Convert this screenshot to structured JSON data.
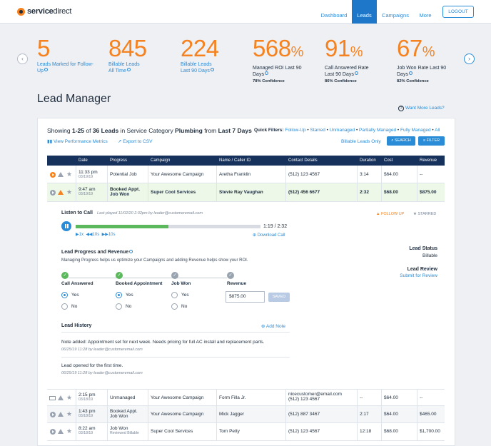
{
  "brand": {
    "name_bold": "service",
    "name_rest": "direct",
    "accent": "#f5821f",
    "primary": "#2a8bd6",
    "navy": "#16325c"
  },
  "nav": {
    "items": [
      "Dashboard",
      "Leads",
      "Campaigns",
      "More"
    ],
    "active": "Leads",
    "logout": "LOGOUT"
  },
  "stats": [
    {
      "value": "5",
      "pct": "",
      "label": "Leads Marked for Follow-Up",
      "confidence": ""
    },
    {
      "value": "845",
      "pct": "",
      "label": "Billable Leads All Time",
      "confidence": ""
    },
    {
      "value": "224",
      "pct": "",
      "label": "Billable Leads Last 90 Days",
      "confidence": ""
    },
    {
      "value": "568",
      "pct": "%",
      "label": "Managed ROI Last 90 Days",
      "confidence": "78% Confidence"
    },
    {
      "value": "91",
      "pct": "%",
      "label": "Call Answered Rate Last 90 Days",
      "confidence": "86% Confidence"
    },
    {
      "value": "67",
      "pct": "%",
      "label": "Job Won Rate Last 90 Days",
      "confidence": "82% Confidence"
    }
  ],
  "page": {
    "title": "Lead Manager",
    "want_more": "Want More Leads?"
  },
  "summary": {
    "p1": "Showing ",
    "range": "1-25",
    "p2": " of ",
    "total": "36 Leads",
    "p3": " in Service Category ",
    "category": "Plumbing",
    "p4": " from ",
    "period": "Last 7 Days"
  },
  "quick_filters": {
    "label": "Quick Filters: ",
    "items": [
      "Follow-Up",
      "Starred",
      "Unmanaged",
      "Partially Managed",
      "Fully Managed",
      "All"
    ]
  },
  "actions": {
    "performance": "View Performance Metrics",
    "export": "Export to CSV",
    "billable_only": "Billable Leads Only",
    "search": "SEARCH",
    "filter": "FILTER"
  },
  "table": {
    "columns": [
      "Date",
      "Progress",
      "Campaign",
      "Name / Caller ID",
      "Contact Details",
      "Duration",
      "Cost",
      "Revenue"
    ],
    "rows_top": [
      {
        "time": "11:33 pm",
        "date": "03/19/19",
        "progress": "Potential Job",
        "progress2": "",
        "campaign": "Your Awesome Campaign",
        "name": "Aretha Franklin",
        "contact": "(512) 123 4567",
        "contact2": "",
        "duration": "3:14",
        "cost": "$64.00",
        "revenue": "--"
      },
      {
        "time": "9:47 am",
        "date": "03/19/19",
        "progress": "Booked Appt.",
        "progress2": "Job Won",
        "campaign": "Super Cool Services",
        "name": "Stevie Ray Vaughan",
        "contact": "(512) 456 6677",
        "contact2": "",
        "duration": "2:32",
        "cost": "$68.00",
        "revenue": "$875.00"
      }
    ],
    "rows_bottom": [
      {
        "time": "2:15 pm",
        "date": "03/18/19",
        "progress": "Unmanaged",
        "progress2": "",
        "campaign": "Your Awesome Campaign",
        "name": "Form Filla Jr.",
        "contact": "nicecustomer@email.com",
        "contact2": "(512) 123 4567",
        "duration": "--",
        "cost": "$64.00",
        "revenue": "--"
      },
      {
        "time": "1:43 pm",
        "date": "03/18/19",
        "progress": "Booked Appt.",
        "progress2": "Job Won",
        "campaign": "Your Awesome Campaign",
        "name": "Mick Jagger",
        "contact": "(512) 887 3467",
        "contact2": "",
        "duration": "2:17",
        "cost": "$64.00",
        "revenue": "$465.00"
      },
      {
        "time": "8:22 am",
        "date": "03/18/19",
        "progress": "Job Won",
        "progress2": "Reviewed Billable",
        "campaign": "Super Cool Services",
        "name": "Tom Petty",
        "contact": "(512) 123 4567",
        "contact2": "",
        "duration": "12:18",
        "cost": "$68.00",
        "revenue": "$1,700.00"
      }
    ]
  },
  "detail": {
    "listen_label": "Listen to Call",
    "last_played": "Last played 11/02/20 2:32pm by leader@customeremail.com",
    "follow_up": "FOLLOW UP",
    "starred": "STARRED",
    "time": "1:19 / 2:32",
    "progress": 0.5,
    "speed": [
      "1x",
      "10s",
      "10s"
    ],
    "download": "Download Call",
    "progress_title": "Lead Progress and Revenue",
    "progress_desc": "Managing Progress helps us optimize your Campaigns and adding Revenue helps show your ROI.",
    "steps": [
      "Call Answered",
      "Booked Appointment",
      "Job Won",
      "Revenue"
    ],
    "yes": "Yes",
    "no": "No",
    "revenue_value": "$875.00",
    "saved": "SAVED",
    "status_label": "Lead Status",
    "status_value": "Billable",
    "review_label": "Lead Review",
    "review_link": "Submit for Review",
    "history_title": "Lead History",
    "add_note": "Add Note",
    "notes": [
      {
        "text": "Note added: Appointment set for next week. Needs pricing for full AC install and replacement parts.",
        "meta": "06/25/19 11:28 by leader@customeremail.com"
      },
      {
        "text": "Lead opened for the first time.",
        "meta": "06/25/19 11:28 by leader@customeremail.com"
      }
    ]
  }
}
